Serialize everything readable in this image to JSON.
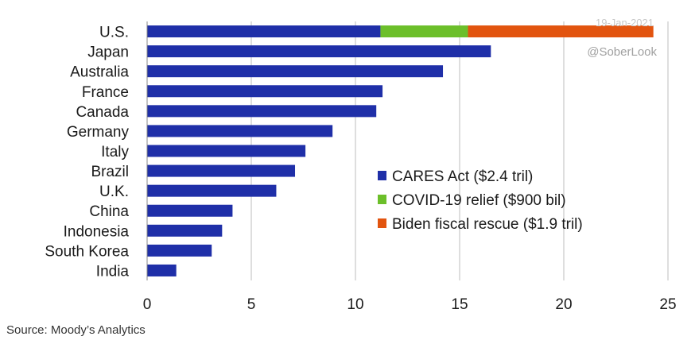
{
  "chart_data": {
    "type": "bar",
    "orientation": "horizontal",
    "stacked": true,
    "categories": [
      "U.S.",
      "Japan",
      "Australia",
      "France",
      "Canada",
      "Germany",
      "Italy",
      "Brazil",
      "U.K.",
      "China",
      "Indonesia",
      "South Korea",
      "India"
    ],
    "series": [
      {
        "name": "CARES Act ($2.4 tril)",
        "color": "#1f2fa8",
        "values": [
          11.2,
          16.5,
          14.2,
          11.3,
          11.0,
          8.9,
          7.6,
          7.1,
          6.2,
          4.1,
          3.6,
          3.1,
          1.4
        ]
      },
      {
        "name": "COVID-19 relief ($900 bil)",
        "color": "#6cbf2a",
        "values": [
          4.2,
          0,
          0,
          0,
          0,
          0,
          0,
          0,
          0,
          0,
          0,
          0,
          0
        ]
      },
      {
        "name": "Biden fiscal rescue ($1.9 tril)",
        "color": "#e2540f",
        "values": [
          8.9,
          0,
          0,
          0,
          0,
          0,
          0,
          0,
          0,
          0,
          0,
          0,
          0
        ]
      }
    ],
    "xlim": [
      0,
      25
    ],
    "xticks": [
      "0",
      "5",
      "10",
      "15",
      "20",
      "25"
    ],
    "grid": "vertical",
    "legend_position": "lower-right"
  },
  "date_stamp": "19-Jan-2021",
  "handle": "@SoberLook",
  "source": "Source: Moody’s Analytics"
}
